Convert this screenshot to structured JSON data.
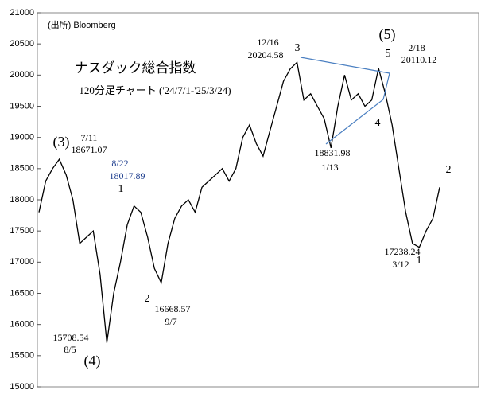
{
  "chart_data": {
    "type": "line",
    "color": "#000000",
    "values": [
      17800,
      18300,
      18500,
      18650,
      18400,
      18000,
      17300,
      17400,
      17500,
      16800,
      15708.54,
      16500,
      17000,
      17600,
      17900,
      17800,
      17400,
      16900,
      16668.57,
      17300,
      17700,
      17900,
      18000,
      17800,
      18200,
      18300,
      18400,
      18500,
      18300,
      18500,
      19000,
      19200,
      18900,
      18700,
      19100,
      19500,
      19900,
      20100,
      20204.58,
      19600,
      19700,
      19500,
      19300,
      18831.98,
      19500,
      20000,
      19600,
      19700,
      19500,
      19600,
      20110.12,
      19700,
      19200,
      18500,
      17800,
      17300,
      17238.24,
      17500,
      17700,
      18200
    ],
    "ylim": [
      15000,
      21000
    ],
    "yticks": [
      15000,
      15500,
      16000,
      16500,
      17000,
      17500,
      18000,
      18500,
      19000,
      19500,
      20000,
      20500,
      21000
    ],
    "trend_color": "#4a7fc1",
    "annotations": [
      {
        "text": "(出所) Bloomberg"
      },
      {
        "text": "ナスダック総合指数"
      },
      {
        "text": "120分足チャート ('24/7/1-'25/3/24)"
      },
      {
        "text": "(3)"
      },
      {
        "text": "7/11"
      },
      {
        "text": "18671.07"
      },
      {
        "text": "8/22",
        "color": "#1f3f8f"
      },
      {
        "text": "18017.89",
        "color": "#1f3f8f"
      },
      {
        "text": "1"
      },
      {
        "text": "2"
      },
      {
        "text": "16668.57"
      },
      {
        "text": "9/7"
      },
      {
        "text": "15708.54"
      },
      {
        "text": "8/5"
      },
      {
        "text": "(4)"
      },
      {
        "text": "12/16"
      },
      {
        "text": "20204.58"
      },
      {
        "text": "3"
      },
      {
        "text": "(5)"
      },
      {
        "text": "5"
      },
      {
        "text": "2/18"
      },
      {
        "text": "20110.12"
      },
      {
        "text": "4"
      },
      {
        "text": "18831.98"
      },
      {
        "text": "1/13"
      },
      {
        "text": "17238.24"
      },
      {
        "text": "3/12"
      },
      {
        "text": "1"
      },
      {
        "text": "2"
      }
    ]
  }
}
